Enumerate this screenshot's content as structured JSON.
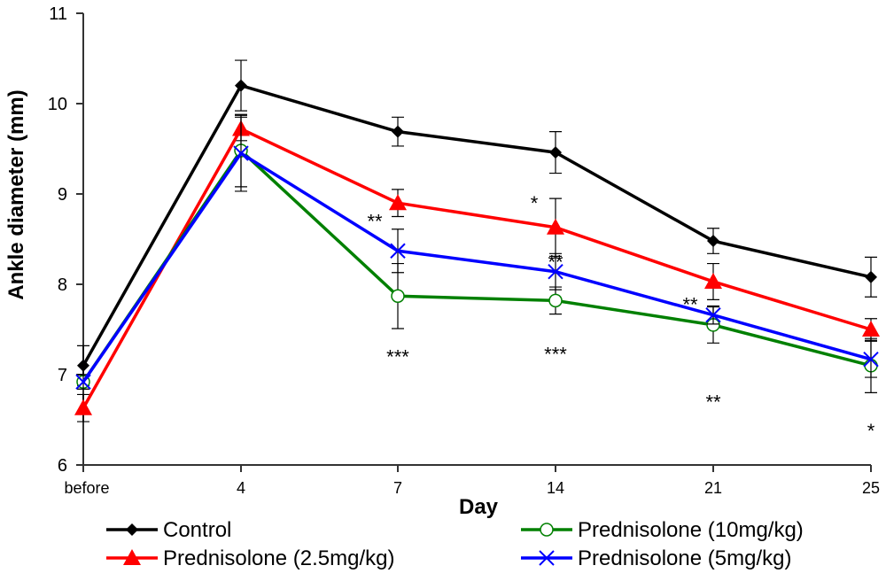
{
  "chart_data": {
    "type": "line",
    "title": "",
    "xlabel": "Day",
    "ylabel": "Ankle diameter (mm)",
    "ylim": [
      6,
      11
    ],
    "yticks": [
      "6",
      "7",
      "8",
      "9",
      "10",
      "11"
    ],
    "categories": [
      "before",
      "4",
      "7",
      "14",
      "21",
      "25"
    ],
    "legend_position": "bottom",
    "series": [
      {
        "name": "Control",
        "color": "#000000",
        "marker": "diamond",
        "values": [
          7.1,
          10.2,
          9.69,
          9.46,
          8.48,
          8.08
        ],
        "errors": [
          0.22,
          0.28,
          0.16,
          0.23,
          0.14,
          0.22
        ]
      },
      {
        "name": "Prednisolone (2.5mg/kg)",
        "color": "#ff0000",
        "marker": "triangle",
        "values": [
          6.63,
          9.72,
          8.9,
          8.63,
          8.03,
          7.5
        ],
        "errors": [
          0.15,
          0.13,
          0.15,
          0.32,
          0.2,
          0.12
        ]
      },
      {
        "name": "Prednisolone (10mg/kg)",
        "color": "#008000",
        "marker": "circle",
        "values": [
          6.92,
          9.48,
          7.87,
          7.82,
          7.55,
          7.1
        ],
        "errors": [
          0.08,
          0.4,
          0.36,
          0.15,
          0.2,
          0.3
        ]
      },
      {
        "name": "Prednisolone (5mg/kg)",
        "color": "#0000ff",
        "marker": "x",
        "values": [
          6.92,
          9.45,
          8.37,
          8.14,
          7.66,
          7.17
        ],
        "errors": [
          0.08,
          0.42,
          0.24,
          0.2,
          0.1,
          0.2
        ]
      }
    ],
    "annotations": [
      {
        "text": "**",
        "category": "7",
        "y": 8.7
      },
      {
        "text": "*",
        "category": "14",
        "y": 8.9
      },
      {
        "text": "**",
        "category": "14",
        "y": 8.25
      },
      {
        "text": "**",
        "category": "21",
        "y": 7.78
      },
      {
        "text": "***",
        "category": "7",
        "y": 7.2
      },
      {
        "text": "***",
        "category": "14",
        "y": 7.23
      },
      {
        "text": "**",
        "category": "21",
        "y": 6.7
      },
      {
        "text": "*",
        "category": "25",
        "y": 6.38
      }
    ]
  }
}
